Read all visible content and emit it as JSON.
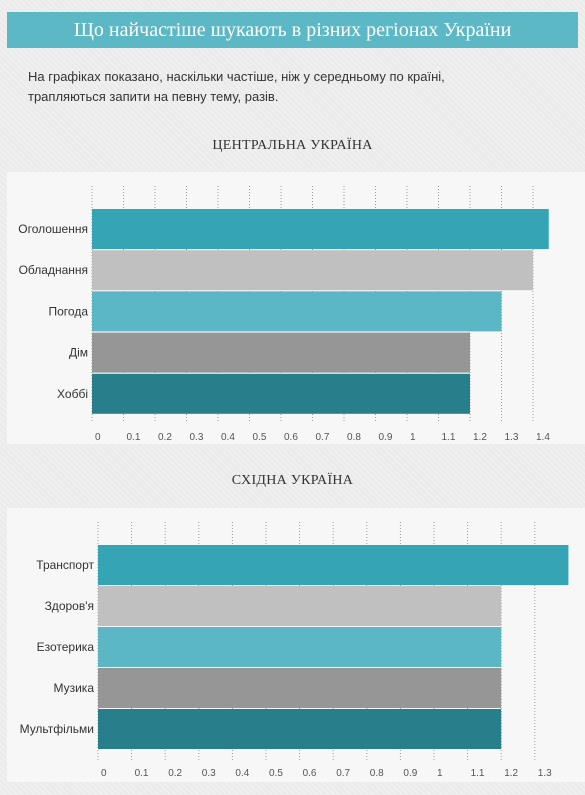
{
  "header": {
    "title": "Що найчастіше шукають в різних регіонах України",
    "subtitle_line1": "На графіках показано, наскільки частіше, ніж у середньому по країні,",
    "subtitle_line2": "трапляються запити на певну тему, разів."
  },
  "colors": {
    "title_bg": "#5cb8c5",
    "teal": "#35a5b5",
    "light_gray": "#c0c0c0",
    "light_teal": "#5cb7c5",
    "gray": "#969696",
    "dark_teal": "#287e8a",
    "panel_bg": "#f7f7f7"
  },
  "chart_data": [
    {
      "type": "bar",
      "orientation": "horizontal",
      "title": "ЦЕНТРАЛЬНА УКРАЇНА",
      "categories": [
        "Оголошення",
        "Обладнання",
        "Погода",
        "Дім",
        "Хоббі"
      ],
      "values": [
        1.45,
        1.4,
        1.3,
        1.2,
        1.2
      ],
      "bar_colors": [
        "#35a5b5",
        "#c0c0c0",
        "#5cb7c5",
        "#969696",
        "#287e8a"
      ],
      "xticks": [
        "0",
        "0.1",
        "0.2",
        "0.3",
        "0.4",
        "0.5",
        "0.6",
        "0.7",
        "0.8",
        "0.9",
        "1",
        "1.1",
        "1.2",
        "1.3",
        "1.4"
      ],
      "xlim": [
        0,
        1.45
      ],
      "grid": "vertical dotted"
    },
    {
      "type": "bar",
      "orientation": "horizontal",
      "title": "СХІДНА УКРАЇНА",
      "categories": [
        "Транспорт",
        "Здоров'я",
        "Езотерика",
        "Музика",
        "Мультфільми"
      ],
      "values": [
        1.4,
        1.2,
        1.2,
        1.2,
        1.2
      ],
      "bar_colors": [
        "#35a5b5",
        "#c0c0c0",
        "#5cb7c5",
        "#969696",
        "#287e8a"
      ],
      "xticks": [
        "0",
        "0.1",
        "0.2",
        "0.3",
        "0.4",
        "0.5",
        "0.6",
        "0.7",
        "0.8",
        "0.9",
        "1",
        "1.1",
        "1.2",
        "1.3"
      ],
      "xlim": [
        0,
        1.4
      ],
      "grid": "vertical dotted"
    }
  ]
}
